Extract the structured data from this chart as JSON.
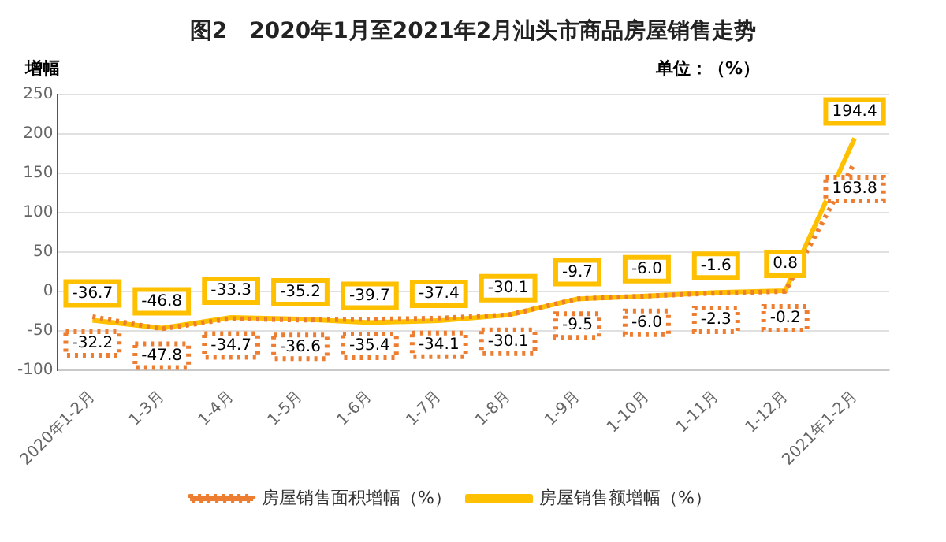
{
  "chart_data": {
    "type": "line",
    "title": "图2　2020年1月至2021年2月汕头市商品房屋销售走势",
    "ylabel": "增幅",
    "annotations": [
      "单位：（%）"
    ],
    "categories": [
      "2020年1-2月",
      "1-3月",
      "1-4月",
      "1-5月",
      "1-6月",
      "1-7月",
      "1-8月",
      "1-9月",
      "1-10月",
      "1-11月",
      "1-12月",
      "2021年1-2月"
    ],
    "series": [
      {
        "name": "房屋销售面积增幅（%）",
        "color": "#ed7d31",
        "line_style": "dotted",
        "values": [
          -32.2,
          -47.8,
          -34.7,
          -36.6,
          -35.4,
          -34.1,
          -30.1,
          -9.5,
          -6.0,
          -2.3,
          -0.2,
          163.8
        ],
        "value_labels": [
          "-32.2",
          "-47.8",
          "-34.7",
          "-36.6",
          "-35.4",
          "-34.1",
          "-30.1",
          "-9.5",
          "-6.0",
          "-2.3",
          "-0.2",
          "163.8"
        ]
      },
      {
        "name": "房屋销售额增幅（%）",
        "color": "#ffc000",
        "line_style": "solid",
        "values": [
          -36.7,
          -46.8,
          -33.3,
          -35.2,
          -39.7,
          -37.4,
          -30.1,
          -9.7,
          -6.0,
          -1.6,
          0.8,
          194.4
        ],
        "value_labels": [
          "-36.7",
          "-46.8",
          "-33.3",
          "-35.2",
          "-39.7",
          "-37.4",
          "-30.1",
          "-9.7",
          "-6.0",
          "-1.6",
          "0.8",
          "194.4"
        ]
      }
    ],
    "ylim": [
      -100,
      250
    ],
    "yticks": [
      -100,
      -50,
      0,
      50,
      100,
      150,
      200,
      250
    ],
    "grid": "y",
    "legend": "bottom",
    "marker": "none"
  }
}
